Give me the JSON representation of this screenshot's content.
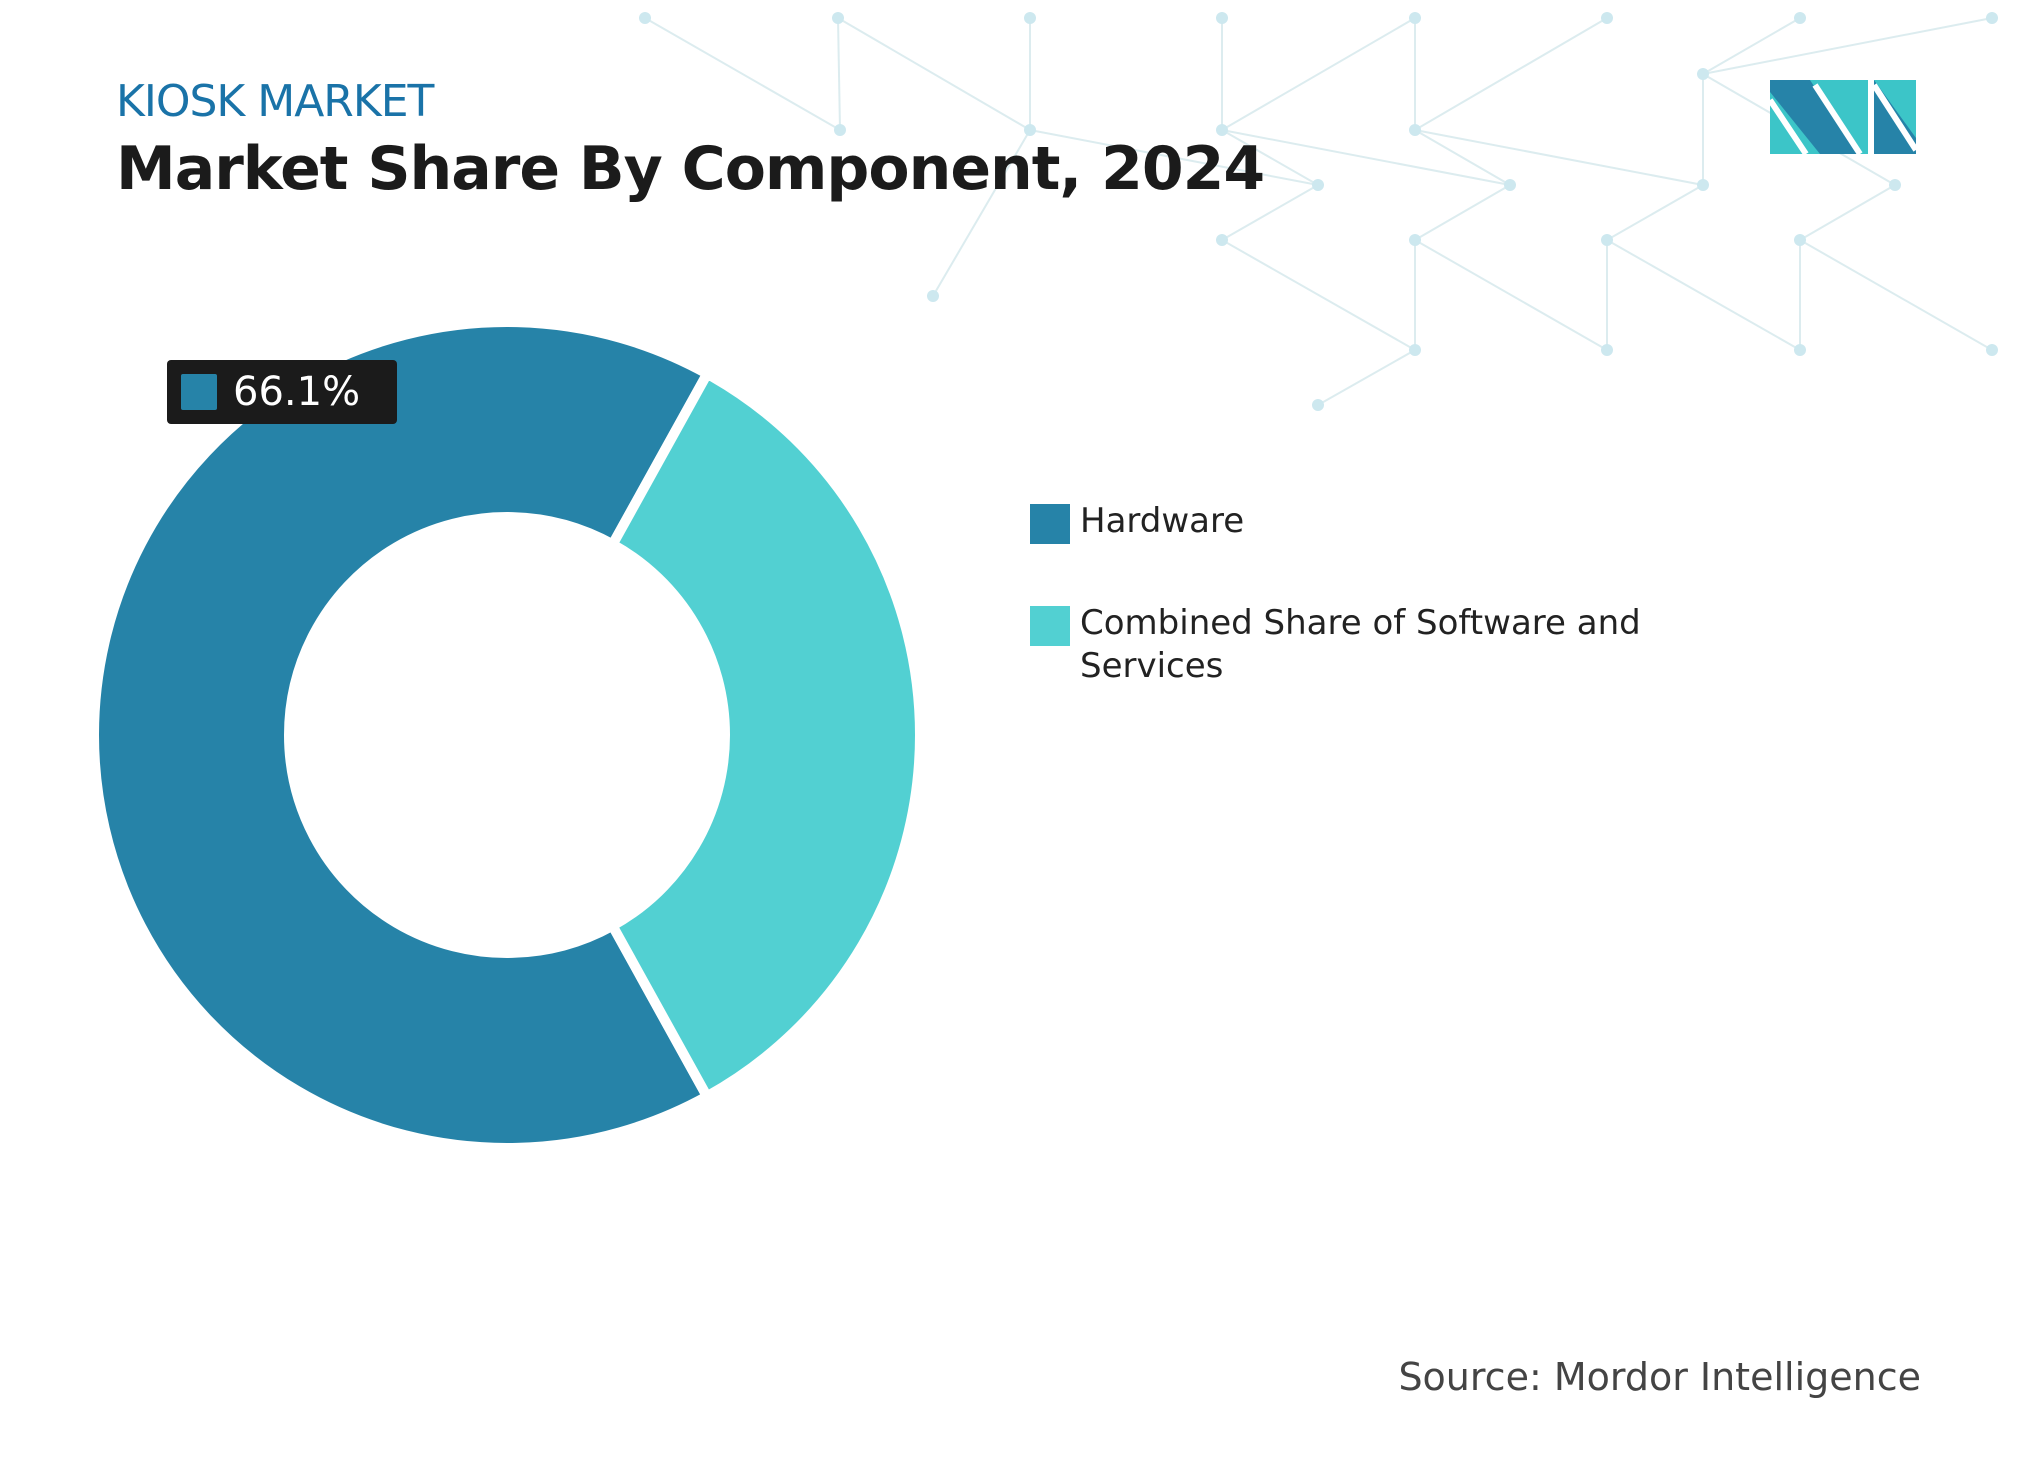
{
  "header": {
    "kicker": "KIOSK MARKET",
    "title": "Market Share By Component, 2024"
  },
  "chart_data": {
    "type": "donut",
    "title": "Market Share By Component, 2024",
    "series": [
      {
        "name": "Hardware",
        "value": 66.1,
        "color": "#2683a8"
      },
      {
        "name": "Combined Share of Software and Services",
        "value": 33.9,
        "color": "#52d0d2"
      }
    ],
    "data_labels": [
      {
        "series": "Hardware",
        "text": "66.1%"
      }
    ],
    "legend": "right"
  },
  "legend": {
    "items": [
      "Hardware",
      "Combined Share of Software and Services"
    ]
  },
  "tooltip": {
    "value": "66.1%"
  },
  "footer": {
    "source": "Source: Mordor Intelligence"
  },
  "logo": {
    "text": "MI",
    "colors": [
      "#2683a8",
      "#3cc5c8"
    ]
  }
}
